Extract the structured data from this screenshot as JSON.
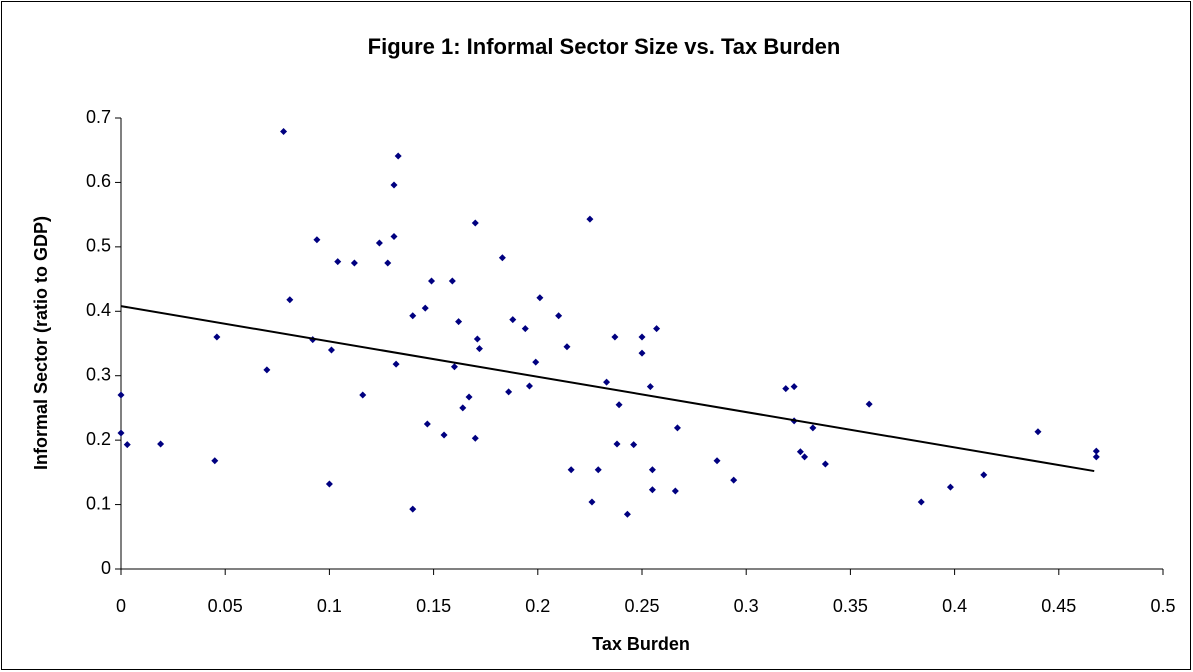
{
  "chart_data": {
    "type": "scatter",
    "title": "Figure 1: Informal Sector Size vs. Tax Burden",
    "x_label": "Tax Burden",
    "y_label": "Informal Sector (ratio to GDP)",
    "xlim": [
      0,
      0.5
    ],
    "xticks": [
      0,
      0.05,
      0.1,
      0.15,
      0.2,
      0.25,
      0.3,
      0.35,
      0.4,
      0.45,
      0.5
    ],
    "ylim": [
      0,
      0.7
    ],
    "yticks": [
      0,
      0.1,
      0.2,
      0.3,
      0.4,
      0.5,
      0.6,
      0.7
    ],
    "grid": false,
    "color": "#000080",
    "x": [
      0,
      0,
      0.003,
      0.019,
      0.045,
      0.046,
      0.07,
      0.078,
      0.081,
      0.092,
      0.094,
      0.1,
      0.101,
      0.104,
      0.112,
      0.116,
      0.124,
      0.128,
      0.131,
      0.131,
      0.132,
      0.133,
      0.14,
      0.14,
      0.146,
      0.147,
      0.149,
      0.155,
      0.159,
      0.16,
      0.162,
      0.164,
      0.167,
      0.17,
      0.17,
      0.171,
      0.172,
      0.183,
      0.186,
      0.188,
      0.194,
      0.196,
      0.199,
      0.201,
      0.21,
      0.214,
      0.216,
      0.225,
      0.226,
      0.229,
      0.233,
      0.237,
      0.238,
      0.239,
      0.243,
      0.246,
      0.25,
      0.25,
      0.254,
      0.255,
      0.255,
      0.257,
      0.266,
      0.267,
      0.286,
      0.294,
      0.319,
      0.323,
      0.323,
      0.326,
      0.328,
      0.332,
      0.338,
      0.359,
      0.384,
      0.398,
      0.414,
      0.44,
      0.468,
      0.468
    ],
    "y": [
      0.27,
      0.211,
      0.193,
      0.194,
      0.168,
      0.36,
      0.309,
      0.679,
      0.418,
      0.356,
      0.511,
      0.132,
      0.34,
      0.477,
      0.475,
      0.27,
      0.506,
      0.475,
      0.596,
      0.516,
      0.318,
      0.641,
      0.393,
      0.093,
      0.405,
      0.225,
      0.447,
      0.208,
      0.447,
      0.314,
      0.384,
      0.25,
      0.267,
      0.537,
      0.203,
      0.357,
      0.342,
      0.483,
      0.275,
      0.387,
      0.373,
      0.284,
      0.321,
      0.421,
      0.393,
      0.345,
      0.154,
      0.543,
      0.104,
      0.154,
      0.29,
      0.36,
      0.194,
      0.255,
      0.085,
      0.193,
      0.36,
      0.335,
      0.283,
      0.154,
      0.123,
      0.373,
      0.121,
      0.219,
      0.168,
      0.138,
      0.28,
      0.283,
      0.23,
      0.182,
      0.174,
      0.219,
      0.163,
      0.256,
      0.104,
      0.127,
      0.146,
      0.213,
      0.183,
      0.174
    ],
    "trendline": {
      "x": [
        0,
        0.467
      ],
      "y": [
        0.408,
        0.152
      ],
      "color": "#000000"
    }
  }
}
